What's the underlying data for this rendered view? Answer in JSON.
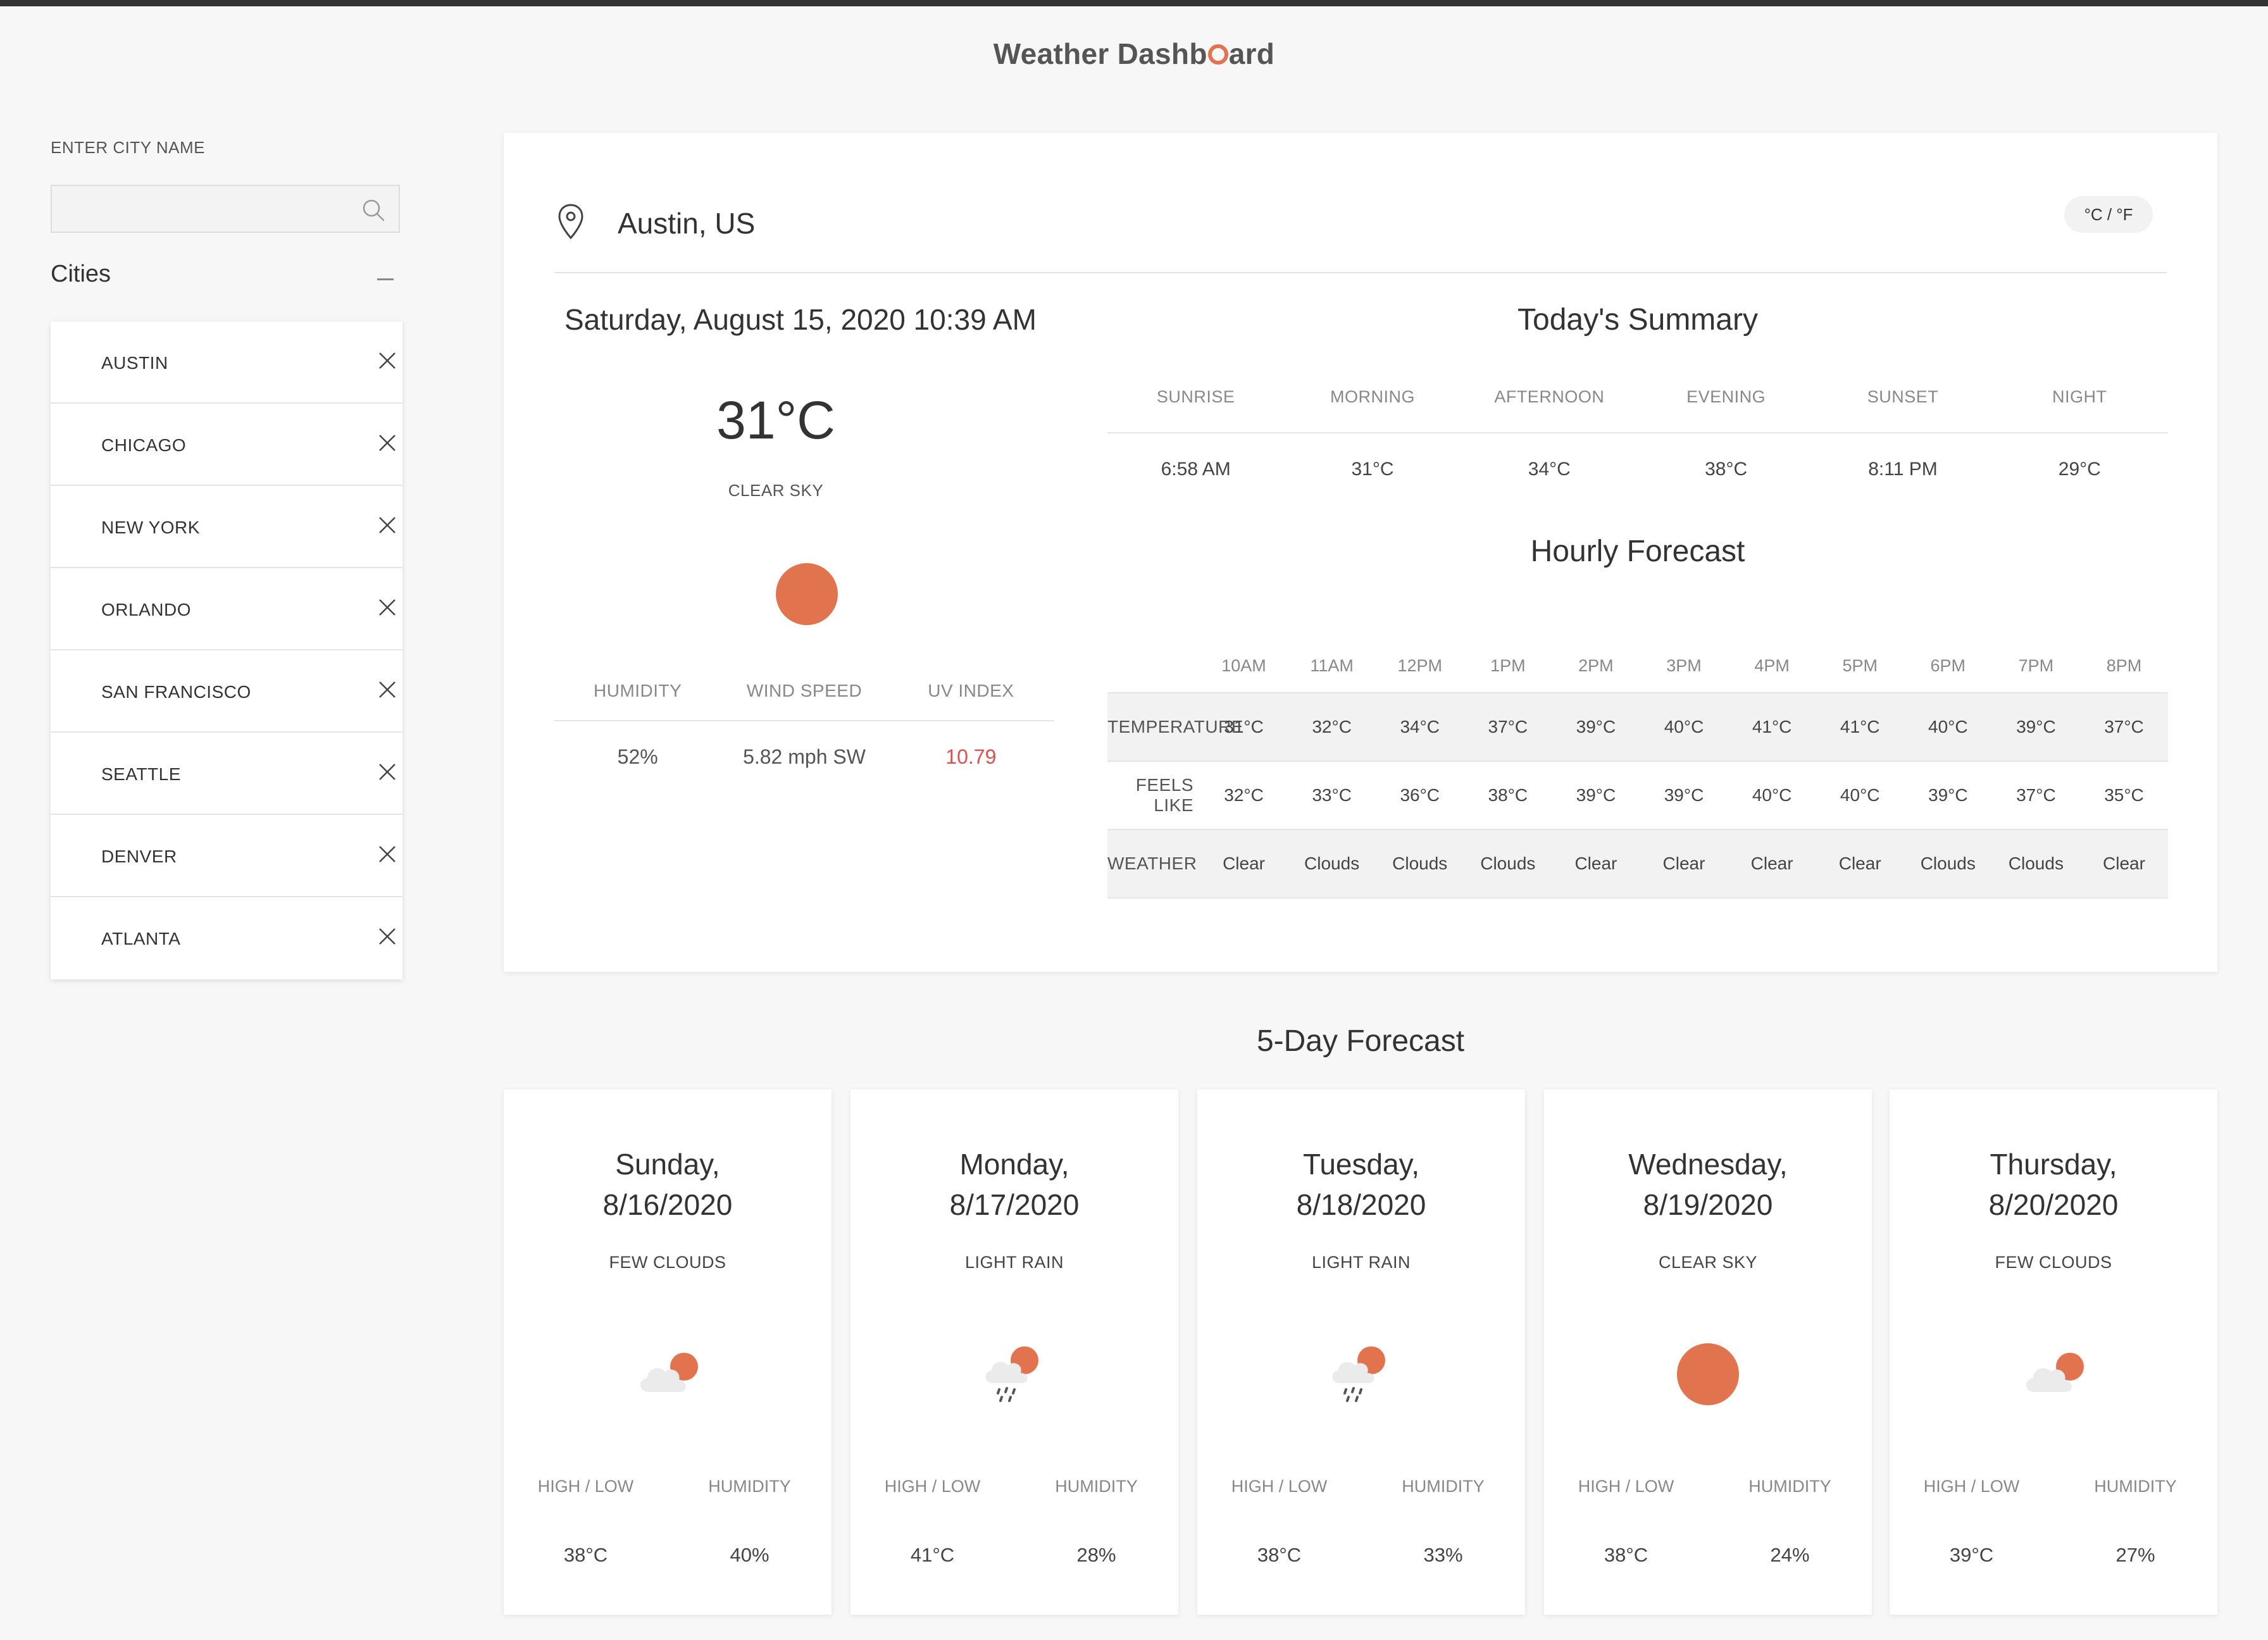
{
  "app": {
    "title": "Weather Dashboard"
  },
  "colors": {
    "accent": "#e2734f",
    "uv_warning": "#d9534f"
  },
  "sidebar": {
    "search_label": "ENTER CITY NAME",
    "search_placeholder": "",
    "search_icon": "search-icon",
    "cities_heading": "Cities",
    "cities": [
      "AUSTIN",
      "CHICAGO",
      "NEW YORK",
      "ORLANDO",
      "SAN FRANCISCO",
      "SEATTLE",
      "DENVER",
      "ATLANTA"
    ]
  },
  "current": {
    "location": "Austin, US",
    "unit_toggle": "°C / °F",
    "datetime": "Saturday, August 15, 2020 10:39 AM",
    "temperature": "31°C",
    "description": "CLEAR SKY",
    "icon": "sun-icon",
    "stats": {
      "humidity_label": "HUMIDITY",
      "humidity": "52%",
      "wind_label": "WIND SPEED",
      "wind": "5.82 mph SW",
      "uv_label": "UV INDEX",
      "uv": "10.79"
    }
  },
  "summary": {
    "title": "Today's Summary",
    "headers": [
      "SUNRISE",
      "MORNING",
      "AFTERNOON",
      "EVENING",
      "SUNSET",
      "NIGHT"
    ],
    "values": [
      "6:58 AM",
      "31°C",
      "34°C",
      "38°C",
      "8:11 PM",
      "29°C"
    ]
  },
  "hourly": {
    "title": "Hourly Forecast",
    "hours": [
      "10AM",
      "11AM",
      "12PM",
      "1PM",
      "2PM",
      "3PM",
      "4PM",
      "5PM",
      "6PM",
      "7PM",
      "8PM"
    ],
    "rows": [
      {
        "label": "TEMPERATURE",
        "values": [
          "31°C",
          "32°C",
          "34°C",
          "37°C",
          "39°C",
          "40°C",
          "41°C",
          "41°C",
          "40°C",
          "39°C",
          "37°C"
        ]
      },
      {
        "label": "FEELS LIKE",
        "values": [
          "32°C",
          "33°C",
          "36°C",
          "38°C",
          "39°C",
          "39°C",
          "40°C",
          "40°C",
          "39°C",
          "37°C",
          "35°C"
        ]
      },
      {
        "label": "WEATHER",
        "values": [
          "Clear",
          "Clouds",
          "Clouds",
          "Clouds",
          "Clear",
          "Clear",
          "Clear",
          "Clear",
          "Clouds",
          "Clouds",
          "Clear"
        ]
      }
    ]
  },
  "five_day": {
    "title": "5-Day Forecast",
    "high_low_label": "HIGH / LOW",
    "humidity_label": "HUMIDITY",
    "days": [
      {
        "day": "Sunday,",
        "date": "8/16/2020",
        "condition": "FEW CLOUDS",
        "icon": "few-clouds-icon",
        "high_low": "38°C",
        "humidity": "40%"
      },
      {
        "day": "Monday,",
        "date": "8/17/2020",
        "condition": "LIGHT RAIN",
        "icon": "light-rain-icon",
        "high_low": "41°C",
        "humidity": "28%"
      },
      {
        "day": "Tuesday,",
        "date": "8/18/2020",
        "condition": "LIGHT RAIN",
        "icon": "light-rain-icon",
        "high_low": "38°C",
        "humidity": "33%"
      },
      {
        "day": "Wednesday,",
        "date": "8/19/2020",
        "condition": "CLEAR SKY",
        "icon": "sun-icon",
        "high_low": "38°C",
        "humidity": "24%"
      },
      {
        "day": "Thursday,",
        "date": "8/20/2020",
        "condition": "FEW CLOUDS",
        "icon": "few-clouds-icon",
        "high_low": "39°C",
        "humidity": "27%"
      }
    ]
  }
}
